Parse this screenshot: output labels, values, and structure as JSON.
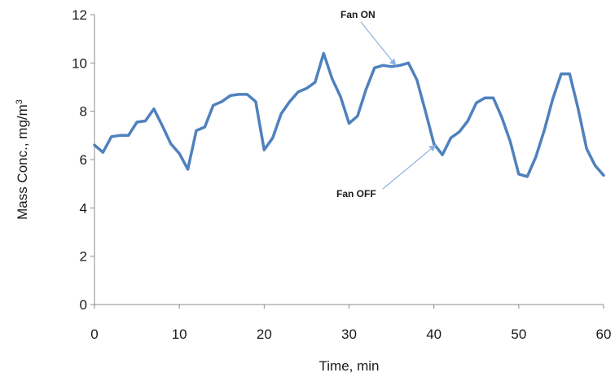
{
  "chart_data": {
    "type": "line",
    "title": "",
    "xlabel": "Time, min",
    "ylabel": "Mass Conc., mg/m",
    "ylabel_sup": "3",
    "xlim": [
      0,
      60
    ],
    "ylim": [
      0,
      12
    ],
    "xticks": [
      0,
      10,
      20,
      30,
      40,
      50,
      60
    ],
    "yticks": [
      0,
      2,
      4,
      6,
      8,
      10,
      12
    ],
    "grid": false,
    "legend": "none",
    "series_color": "#4f81bd",
    "series": [
      {
        "x": [
          0,
          1,
          2,
          3,
          4,
          5,
          6,
          7,
          8,
          9,
          10,
          11,
          12,
          13,
          14,
          15,
          16,
          17,
          18,
          19,
          20,
          21,
          22,
          23,
          24,
          25,
          26,
          27,
          28,
          29,
          30,
          31,
          32,
          33,
          34,
          35,
          36,
          37,
          38,
          39,
          40,
          41,
          42,
          43,
          44,
          45,
          46,
          47,
          48,
          49,
          50,
          51,
          52,
          53,
          54,
          55,
          56,
          57,
          58,
          59,
          60
        ],
        "y": [
          6.6,
          6.3,
          6.95,
          7.0,
          7.0,
          7.55,
          7.6,
          8.1,
          7.4,
          6.65,
          6.25,
          5.6,
          7.2,
          7.35,
          8.25,
          8.4,
          8.65,
          8.7,
          8.7,
          8.4,
          6.4,
          6.9,
          7.9,
          8.4,
          8.8,
          8.95,
          9.2,
          10.4,
          9.35,
          8.6,
          7.5,
          7.8,
          8.9,
          9.8,
          9.9,
          9.85,
          9.9,
          10.0,
          9.3,
          8.0,
          6.65,
          6.2,
          6.9,
          7.15,
          7.6,
          8.35,
          8.55,
          8.55,
          7.75,
          6.75,
          5.4,
          5.3,
          6.1,
          7.2,
          8.5,
          9.55,
          9.55,
          8.1,
          6.45,
          5.75,
          5.35
        ]
      }
    ],
    "annotations": [
      {
        "text": "Fan ON",
        "x": 35.5,
        "y": 9.9
      },
      {
        "text": "Fan OFF",
        "x": 40.2,
        "y": 6.6
      }
    ]
  }
}
